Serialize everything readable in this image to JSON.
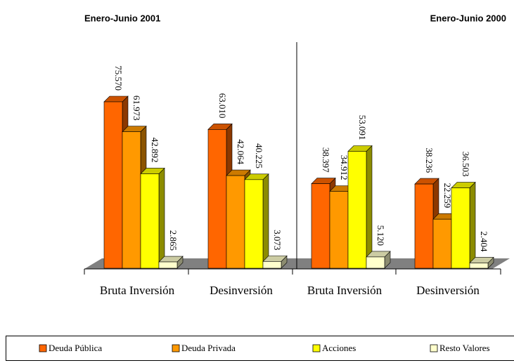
{
  "chart_data": {
    "type": "bar3d",
    "legend": "bottom",
    "series": [
      {
        "name": "Deuda Pública",
        "color": "#ff6600"
      },
      {
        "name": "Deuda Privada",
        "color": "#ff9900"
      },
      {
        "name": "Acciones",
        "color": "#ffff00"
      },
      {
        "name": "Resto Valores",
        "color": "#ffffcc"
      }
    ],
    "panels": [
      {
        "title": "Enero-Junio 2001",
        "categories": [
          "Bruta Inversión",
          "Desinversión"
        ],
        "series": [
          {
            "values": [
              75570,
              63010
            ],
            "value_labels": [
              "75.570",
              "63.010"
            ]
          },
          {
            "values": [
              61973,
              42064
            ],
            "value_labels": [
              "61.973",
              "42.064"
            ]
          },
          {
            "values": [
              42892,
              40225
            ],
            "value_labels": [
              "42.892",
              "40.225"
            ]
          },
          {
            "values": [
              2865,
              3073
            ],
            "value_labels": [
              "2.865",
              "3.073"
            ]
          }
        ]
      },
      {
        "title": "Enero-Junio 2000",
        "categories": [
          "Bruta Inversión",
          "Desinversión"
        ],
        "series": [
          {
            "values": [
              38397,
              38236
            ],
            "value_labels": [
              "38.397",
              "38.236"
            ]
          },
          {
            "values": [
              34912,
              22259
            ],
            "value_labels": [
              "34.912",
              "22.259"
            ]
          },
          {
            "values": [
              53091,
              36503
            ],
            "value_labels": [
              "53.091",
              "36.503"
            ]
          },
          {
            "values": [
              5120,
              2404
            ],
            "value_labels": [
              "5.120",
              "2.404"
            ]
          }
        ]
      }
    ]
  }
}
